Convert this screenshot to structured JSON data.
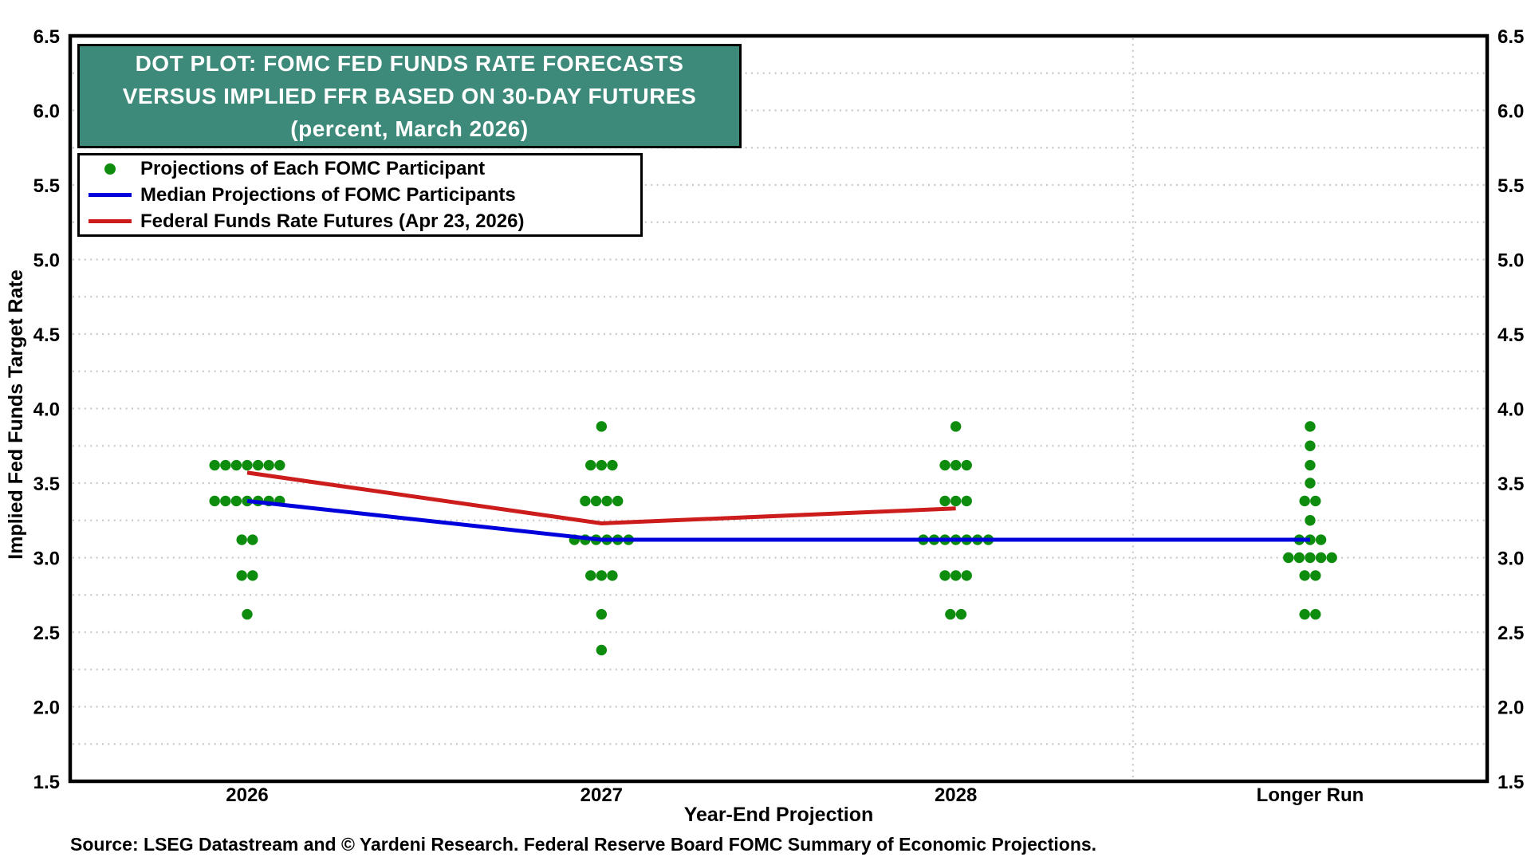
{
  "chart_data": {
    "type": "scatter",
    "subtype": "fomc-dot-plot",
    "title_lines": [
      "DOT PLOT: FOMC FED FUNDS RATE FORECASTS",
      "VERSUS IMPLIED FFR BASED ON 30-DAY FUTURES",
      "(percent, March 2026)"
    ],
    "x_axis": {
      "label": "Year-End Projection",
      "categories": [
        "2026",
        "2027",
        "2028",
        "Longer Run"
      ]
    },
    "y_axis": {
      "label": "Implied Fed Funds Target Rate",
      "min": 1.5,
      "max": 6.5,
      "tick_step": 0.5,
      "ticks": [
        "6.5",
        "6.0",
        "5.5",
        "5.0",
        "4.5",
        "4.0",
        "3.5",
        "3.0",
        "2.5",
        "2.0",
        "1.5"
      ],
      "grid_step": 0.25,
      "tick_sides": "both"
    },
    "legend": [
      {
        "marker": "dot",
        "color": "#0E8C0E",
        "label": "Projections of Each FOMC Participant"
      },
      {
        "marker": "line",
        "color": "#0000DD",
        "label": "Median Projections of FOMC Participants"
      },
      {
        "marker": "line",
        "color": "#CC1C1C",
        "label": "Federal Funds Rate Futures (Apr 23, 2026)"
      }
    ],
    "legend_position": "top-left",
    "grid": true,
    "dot_series": {
      "name": "Projections of Each FOMC Participant",
      "color": "#0E8C0E",
      "columns": [
        {
          "category": "2026",
          "stacks": [
            {
              "rate": 3.62,
              "count": 7
            },
            {
              "rate": 3.38,
              "count": 7
            },
            {
              "rate": 3.12,
              "count": 2
            },
            {
              "rate": 2.88,
              "count": 2
            },
            {
              "rate": 2.62,
              "count": 1
            }
          ]
        },
        {
          "category": "2027",
          "stacks": [
            {
              "rate": 3.88,
              "count": 1
            },
            {
              "rate": 3.62,
              "count": 3
            },
            {
              "rate": 3.38,
              "count": 4
            },
            {
              "rate": 3.12,
              "count": 6
            },
            {
              "rate": 2.88,
              "count": 3
            },
            {
              "rate": 2.62,
              "count": 1
            },
            {
              "rate": 2.38,
              "count": 1
            }
          ]
        },
        {
          "category": "2028",
          "stacks": [
            {
              "rate": 3.88,
              "count": 1
            },
            {
              "rate": 3.62,
              "count": 3
            },
            {
              "rate": 3.38,
              "count": 3
            },
            {
              "rate": 3.12,
              "count": 7
            },
            {
              "rate": 2.88,
              "count": 3
            },
            {
              "rate": 2.62,
              "count": 2
            }
          ]
        },
        {
          "category": "Longer Run",
          "stacks": [
            {
              "rate": 3.88,
              "count": 1
            },
            {
              "rate": 3.75,
              "count": 1
            },
            {
              "rate": 3.62,
              "count": 1
            },
            {
              "rate": 3.5,
              "count": 1
            },
            {
              "rate": 3.38,
              "count": 2
            },
            {
              "rate": 3.25,
              "count": 1
            },
            {
              "rate": 3.12,
              "count": 3
            },
            {
              "rate": 3.0,
              "count": 5
            },
            {
              "rate": 2.88,
              "count": 2
            },
            {
              "rate": 2.62,
              "count": 2
            }
          ]
        }
      ]
    },
    "median_series": {
      "name": "Median Projections of FOMC Participants",
      "color": "#0000DD",
      "points": [
        {
          "category": "2026",
          "rate": 3.38
        },
        {
          "category": "2027",
          "rate": 3.12
        },
        {
          "category": "2028",
          "rate": 3.12
        },
        {
          "category": "Longer Run",
          "rate": 3.12
        }
      ]
    },
    "futures_series": {
      "name": "Federal Funds Rate Futures (Apr 23, 2026)",
      "color": "#CC1C1C",
      "points": [
        {
          "category": "2026",
          "rate": 3.57
        },
        {
          "category": "2027",
          "rate": 3.23
        },
        {
          "category": "2028",
          "rate": 3.33
        }
      ]
    },
    "separator_between": [
      "2028",
      "Longer Run"
    ]
  },
  "source_note": "Source: LSEG Datastream and © Yardeni Research. Federal Reserve Board FOMC Summary of Economic Projections.",
  "colors": {
    "title_bg": "#3E8A7A",
    "title_text": "#FFFFFF",
    "grid": "#C9C9C9",
    "plot_border": "#000000",
    "axis_text": "#000000",
    "page_bg": "#FFFFFF"
  }
}
